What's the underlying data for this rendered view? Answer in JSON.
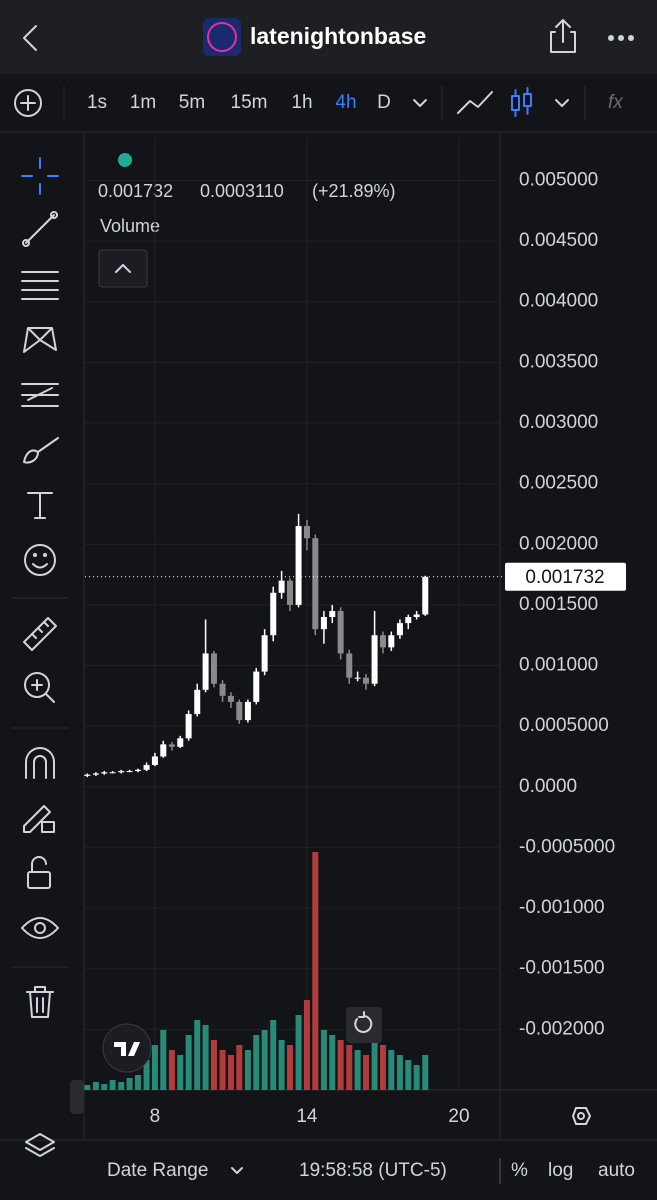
{
  "ui": {
    "title": "latenightonbase",
    "timeframes": [
      "1s",
      "1m",
      "5m",
      "15m",
      "1h",
      "4h",
      "D"
    ],
    "active_timeframe": 5,
    "indicators": "fx",
    "legend_close": "0.001732",
    "legend_change": "0.0003110",
    "legend_pct": "(+21.89%)",
    "date_range": "Date Range",
    "clock": "19:58:58 (UTC-5)",
    "percent": "%",
    "log": "log",
    "auto": "auto",
    "price_tag": "0.001732"
  },
  "chart_data": {
    "type": "candlestick",
    "x": [
      5.33,
      5.67,
      6,
      6.33,
      6.67,
      7,
      7.33,
      7.67,
      8,
      8.33,
      8.67,
      9,
      9.33,
      9.67,
      10,
      10.33,
      10.67,
      11,
      11.33,
      11.67,
      12,
      12.33,
      12.67,
      13,
      13.33,
      13.67,
      14,
      14.33,
      14.67,
      15,
      15.33,
      15.67,
      16,
      16.33,
      16.67,
      17,
      17.33,
      17.67,
      18,
      18.33,
      18.67
    ],
    "open": [
      9e-05,
      0.0001,
      0.00011,
      0.00012,
      0.00012,
      0.00013,
      0.00013,
      0.00014,
      0.00018,
      0.00025,
      0.00035,
      0.00033,
      0.0004,
      0.0006,
      0.0008,
      0.0011,
      0.00085,
      0.00075,
      0.0007,
      0.00055,
      0.0007,
      0.00095,
      0.00125,
      0.0016,
      0.0017,
      0.0015,
      0.00215,
      0.00205,
      0.0013,
      0.0014,
      0.00145,
      0.0011,
      0.0009,
      0.0009,
      0.00085,
      0.00125,
      0.00115,
      0.00125,
      0.00135,
      0.0014,
      0.001421
    ],
    "high": [
      0.00011,
      0.00012,
      0.00013,
      0.00013,
      0.00014,
      0.00014,
      0.00015,
      0.0002,
      0.00028,
      0.00038,
      0.00037,
      0.00042,
      0.00063,
      0.00085,
      0.00138,
      0.00112,
      0.00088,
      0.00078,
      0.00072,
      0.00072,
      0.00098,
      0.0013,
      0.00165,
      0.00178,
      0.00172,
      0.00225,
      0.0022,
      0.00208,
      0.00145,
      0.0015,
      0.00148,
      0.00113,
      0.00095,
      0.00093,
      0.00145,
      0.00128,
      0.00128,
      0.00138,
      0.00142,
      0.00145,
      0.00174
    ],
    "low": [
      8e-05,
      9e-05,
      0.0001,
      0.00011,
      0.00011,
      0.00012,
      0.00012,
      0.00013,
      0.00017,
      0.00024,
      0.0003,
      0.00032,
      0.00038,
      0.00058,
      0.00078,
      0.00082,
      0.0007,
      0.00065,
      0.00052,
      0.00053,
      0.00068,
      0.00092,
      0.0012,
      0.00155,
      0.00145,
      0.00148,
      0.00195,
      0.00125,
      0.00118,
      0.00135,
      0.00105,
      0.00085,
      0.00087,
      0.0008,
      0.00083,
      0.0011,
      0.00112,
      0.00122,
      0.0013,
      0.00138,
      0.00141
    ],
    "close": [
      0.0001,
      0.00011,
      0.00012,
      0.00012,
      0.00013,
      0.00013,
      0.00014,
      0.00018,
      0.00025,
      0.00035,
      0.00033,
      0.0004,
      0.0006,
      0.0008,
      0.0011,
      0.00085,
      0.00075,
      0.0007,
      0.00055,
      0.0007,
      0.00095,
      0.00125,
      0.0016,
      0.0017,
      0.0015,
      0.00215,
      0.00205,
      0.0013,
      0.0014,
      0.00145,
      0.0011,
      0.0009,
      0.0009,
      0.00085,
      0.00125,
      0.00115,
      0.00125,
      0.00135,
      0.0014,
      0.001421,
      0.001732
    ],
    "up_color": "#ffffff",
    "down_color": "#8a8a8a",
    "volume": {
      "name": "Volume",
      "up_color": "#2a8a78",
      "down_color": "#b23b3b",
      "values": [
        5,
        8,
        6,
        10,
        8,
        12,
        15,
        30,
        45,
        60,
        40,
        35,
        55,
        70,
        65,
        50,
        40,
        35,
        45,
        40,
        55,
        60,
        70,
        50,
        45,
        75,
        90,
        238,
        60,
        55,
        50,
        45,
        40,
        35,
        50,
        45,
        40,
        35,
        30,
        25,
        35
      ]
    },
    "xlim": [
      5.24,
      21.62
    ],
    "xticks": [
      8,
      14,
      20
    ],
    "ylim": [
      -0.0025,
      0.00535
    ],
    "yticks": [
      {
        "value": 0.005,
        "label": "0.005000"
      },
      {
        "value": 0.0045,
        "label": "0.004500"
      },
      {
        "value": 0.004,
        "label": "0.004000"
      },
      {
        "value": 0.0035,
        "label": "0.003500"
      },
      {
        "value": 0.003,
        "label": "0.003000"
      },
      {
        "value": 0.0025,
        "label": "0.002500"
      },
      {
        "value": 0.002,
        "label": "0.002000"
      },
      {
        "value": 0.0015,
        "label": "0.001500"
      },
      {
        "value": 0.001,
        "label": "0.001000"
      },
      {
        "value": 0.0005,
        "label": "0.0005000"
      },
      {
        "value": 0,
        "label": "0.0000"
      },
      {
        "value": -0.0005,
        "label": "-0.0005000"
      },
      {
        "value": -0.001,
        "label": "-0.001000"
      },
      {
        "value": -0.0015,
        "label": "-0.001500"
      },
      {
        "value": -0.002,
        "label": "-0.002000"
      }
    ],
    "grid": true
  }
}
